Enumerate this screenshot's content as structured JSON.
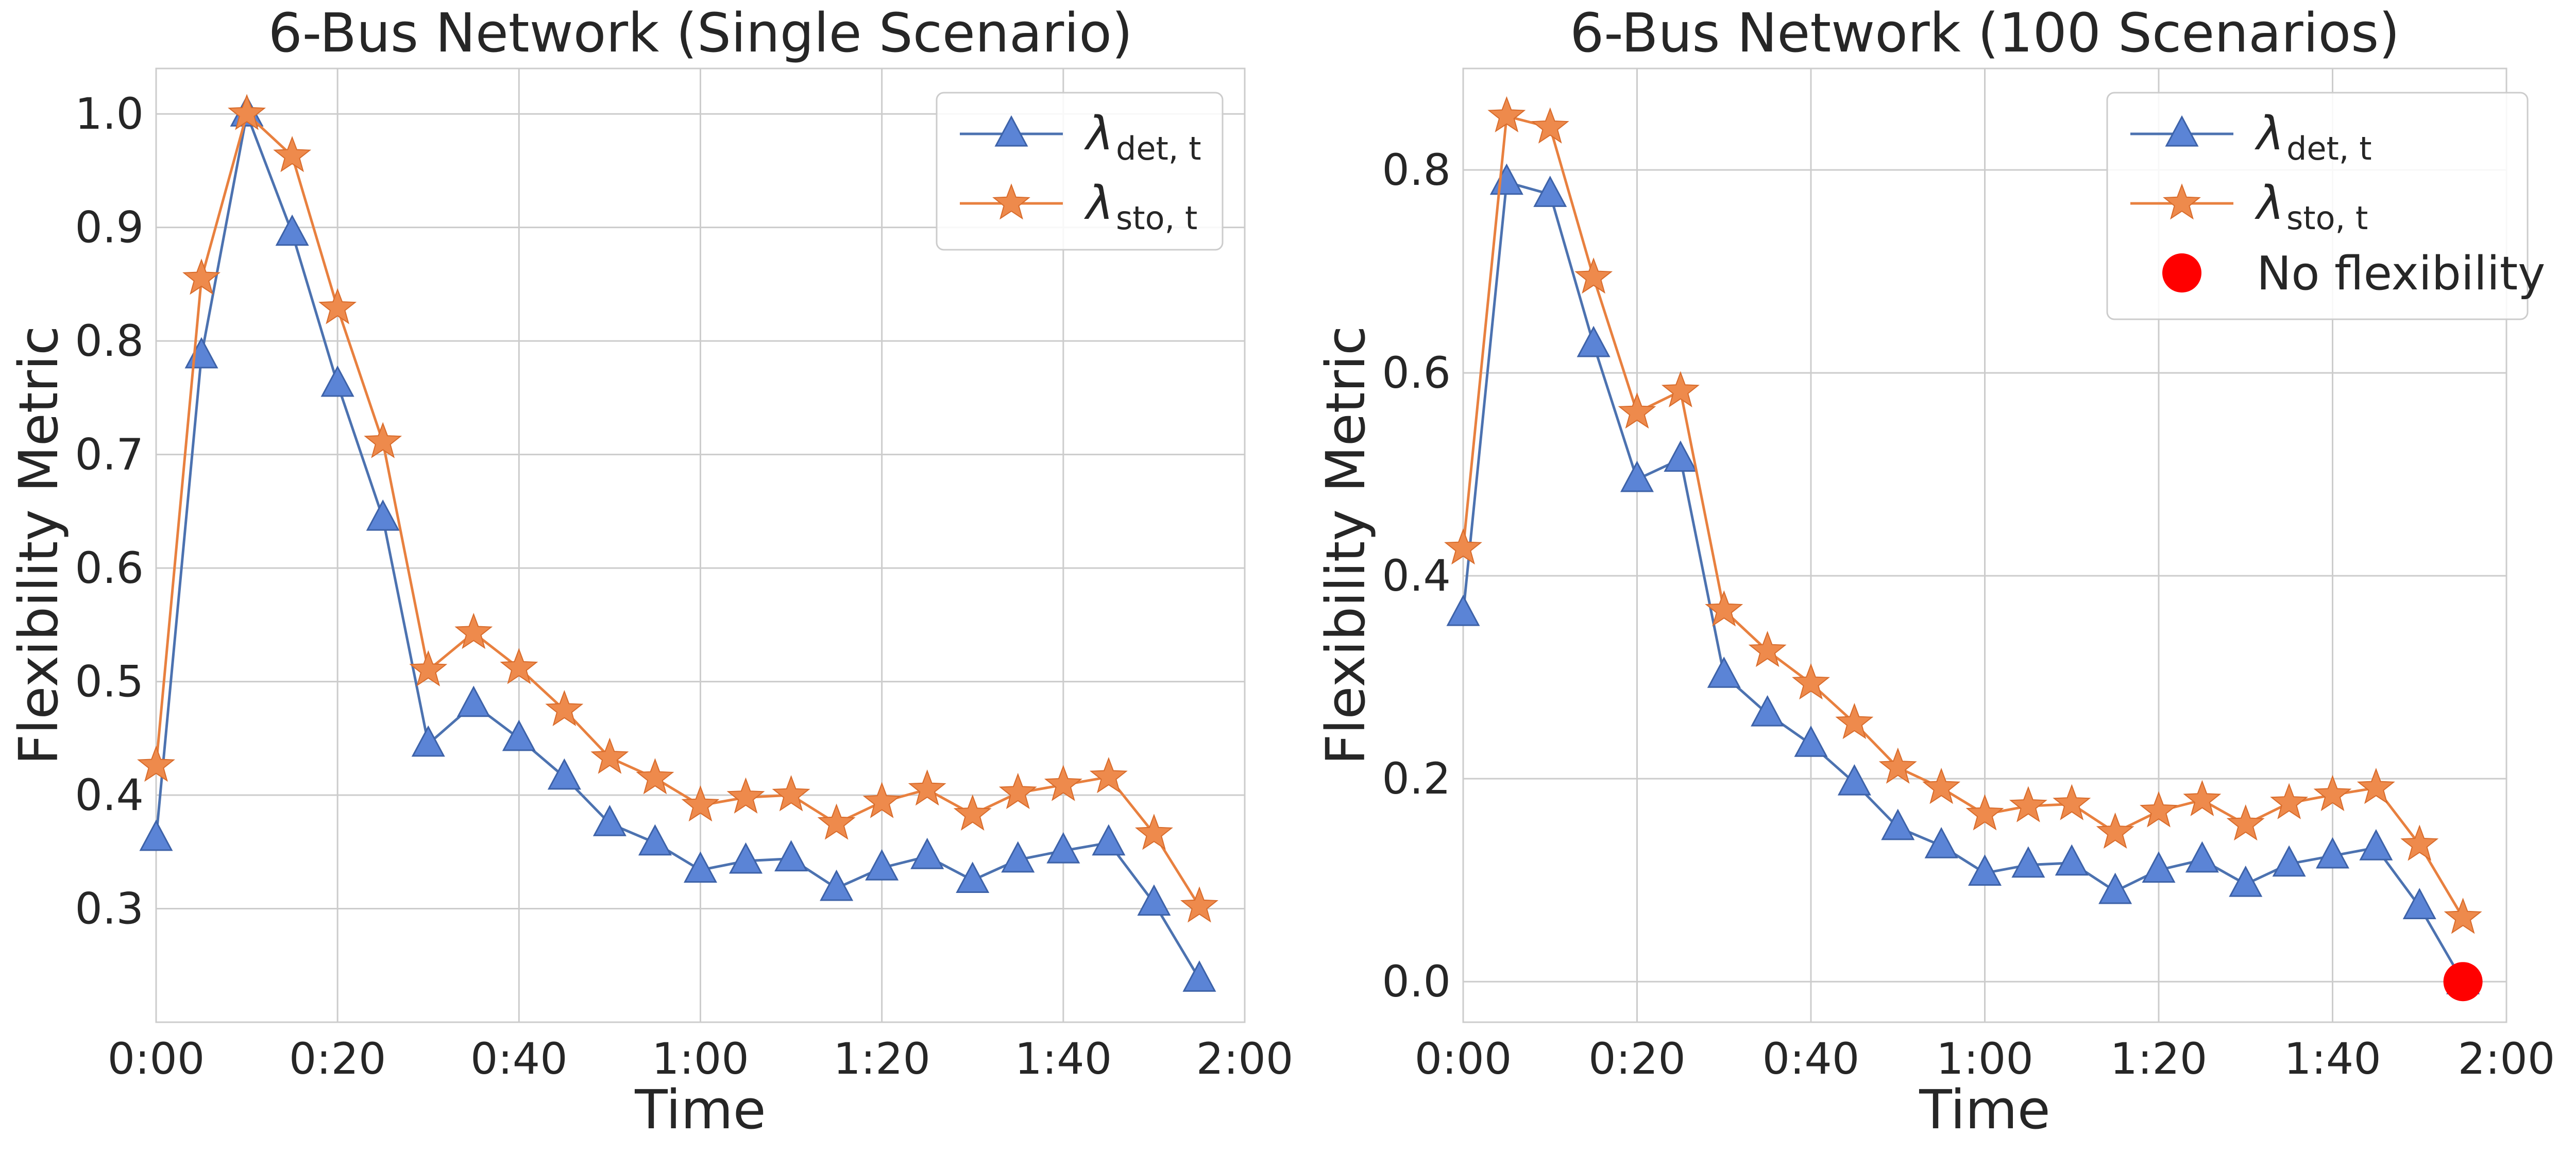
{
  "chart_data": [
    {
      "type": "line",
      "title": "6-Bus Network (Single Scenario)",
      "xlabel": "Time",
      "ylabel": "Flexibility Metric",
      "xlim": [
        0,
        120
      ],
      "ylim": [
        0.2,
        1.04
      ],
      "xticks": [
        0,
        20,
        40,
        60,
        80,
        100,
        120
      ],
      "xtick_labels": [
        "0:00",
        "0:20",
        "0:40",
        "1:00",
        "1:20",
        "1:40",
        "2:00"
      ],
      "yticks": [
        0.3,
        0.4,
        0.5,
        0.6,
        0.7,
        0.8,
        0.9,
        1.0
      ],
      "ytick_labels": [
        "0.3",
        "0.4",
        "0.5",
        "0.6",
        "0.7",
        "0.8",
        "0.9",
        "1.0"
      ],
      "grid": true,
      "legend_position": "top-right",
      "x": [
        0,
        5,
        10,
        15,
        20,
        25,
        30,
        35,
        40,
        45,
        50,
        55,
        60,
        65,
        70,
        75,
        80,
        85,
        90,
        95,
        100,
        105,
        110,
        115
      ],
      "series": [
        {
          "name": "λdet,t",
          "label_main": "λ",
          "label_sub": "det, t",
          "color": "#4c72b0",
          "fill": "#5b84d6",
          "marker": "triangle",
          "values": [
            0.362,
            0.787,
            1.0,
            0.895,
            0.762,
            0.644,
            0.445,
            0.48,
            0.45,
            0.416,
            0.375,
            0.358,
            0.334,
            0.342,
            0.344,
            0.318,
            0.336,
            0.346,
            0.325,
            0.343,
            0.351,
            0.358,
            0.305,
            0.238
          ]
        },
        {
          "name": "λsto,t",
          "label_main": "λ",
          "label_sub": "sto, t",
          "color": "#e8803f",
          "fill": "#ee8a4c",
          "marker": "star",
          "values": [
            0.426,
            0.855,
            1.0,
            0.963,
            0.829,
            0.711,
            0.51,
            0.543,
            0.512,
            0.475,
            0.433,
            0.415,
            0.391,
            0.398,
            0.4,
            0.375,
            0.394,
            0.405,
            0.383,
            0.402,
            0.409,
            0.416,
            0.366,
            0.302
          ]
        }
      ]
    },
    {
      "type": "line",
      "title": "6-Bus Network (100 Scenarios)",
      "xlabel": "Time",
      "ylabel": "Flexibility Metric",
      "xlim": [
        0,
        120
      ],
      "ylim": [
        -0.04,
        0.9
      ],
      "xticks": [
        0,
        20,
        40,
        60,
        80,
        100,
        120
      ],
      "xtick_labels": [
        "0:00",
        "0:20",
        "0:40",
        "1:00",
        "1:20",
        "1:40",
        "2:00"
      ],
      "yticks": [
        0.0,
        0.2,
        0.4,
        0.6,
        0.8
      ],
      "ytick_labels": [
        "0.0",
        "0.2",
        "0.4",
        "0.6",
        "0.8"
      ],
      "grid": true,
      "legend_position": "top-right",
      "x": [
        0,
        5,
        10,
        15,
        20,
        25,
        30,
        35,
        40,
        45,
        50,
        55,
        60,
        65,
        70,
        75,
        80,
        85,
        90,
        95,
        100,
        105,
        110,
        115
      ],
      "series": [
        {
          "name": "λdet,t",
          "label_main": "λ",
          "label_sub": "det, t",
          "color": "#4c72b0",
          "fill": "#5b84d6",
          "marker": "triangle",
          "values": [
            0.363,
            0.788,
            0.776,
            0.628,
            0.495,
            0.515,
            0.302,
            0.264,
            0.234,
            0.196,
            0.152,
            0.134,
            0.107,
            0.115,
            0.117,
            0.089,
            0.11,
            0.12,
            0.096,
            0.116,
            0.124,
            0.132,
            0.074,
            0.0
          ]
        },
        {
          "name": "λsto,t",
          "label_main": "λ",
          "label_sub": "sto, t",
          "color": "#e8803f",
          "fill": "#ee8a4c",
          "marker": "star",
          "values": [
            0.427,
            0.853,
            0.842,
            0.694,
            0.561,
            0.582,
            0.366,
            0.326,
            0.294,
            0.255,
            0.211,
            0.191,
            0.165,
            0.173,
            0.175,
            0.147,
            0.168,
            0.179,
            0.155,
            0.176,
            0.184,
            0.191,
            0.135,
            0.063
          ]
        }
      ],
      "special_point": {
        "name": "No flexibility",
        "x": 115,
        "y": 0.0,
        "color": "#ff0000",
        "marker": "circle"
      }
    }
  ]
}
